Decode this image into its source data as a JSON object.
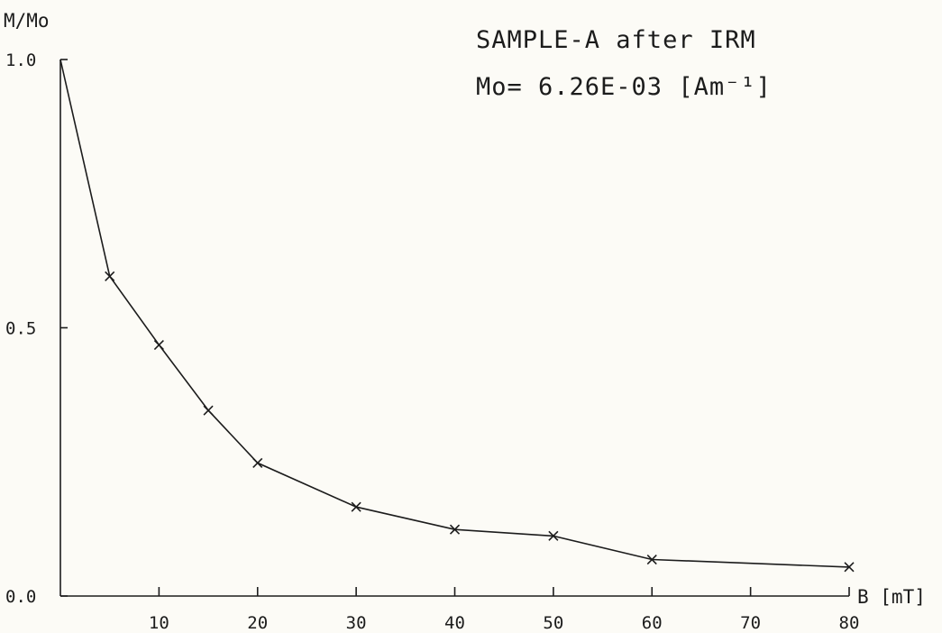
{
  "chart_data": {
    "type": "line",
    "title": "SAMPLE-A after IRM",
    "subtitle": "Mo= 6.26E-03 [Am⁻¹]",
    "xlabel": "B [mT]",
    "ylabel": "M/Mo",
    "xlim": [
      0,
      80
    ],
    "ylim": [
      0,
      1
    ],
    "grid": false,
    "x_ticks": [
      10,
      20,
      30,
      40,
      50,
      60,
      70,
      80
    ],
    "x_tick_labels": [
      "10",
      "20",
      "30",
      "40",
      "50",
      "60",
      "70",
      "80"
    ],
    "y_ticks": [
      0,
      0.5,
      1.0
    ],
    "y_tick_labels": [
      "0.0",
      "0.5",
      "1.0"
    ],
    "series": [
      {
        "x": [
          0,
          5,
          10,
          15,
          20,
          30,
          40,
          50,
          60,
          80
        ],
        "y": [
          1.0,
          0.596,
          0.468,
          0.346,
          0.248,
          0.166,
          0.124,
          0.112,
          0.068,
          0.054
        ],
        "markers": [
          false,
          true,
          true,
          true,
          true,
          true,
          true,
          true,
          true,
          true
        ]
      }
    ]
  }
}
